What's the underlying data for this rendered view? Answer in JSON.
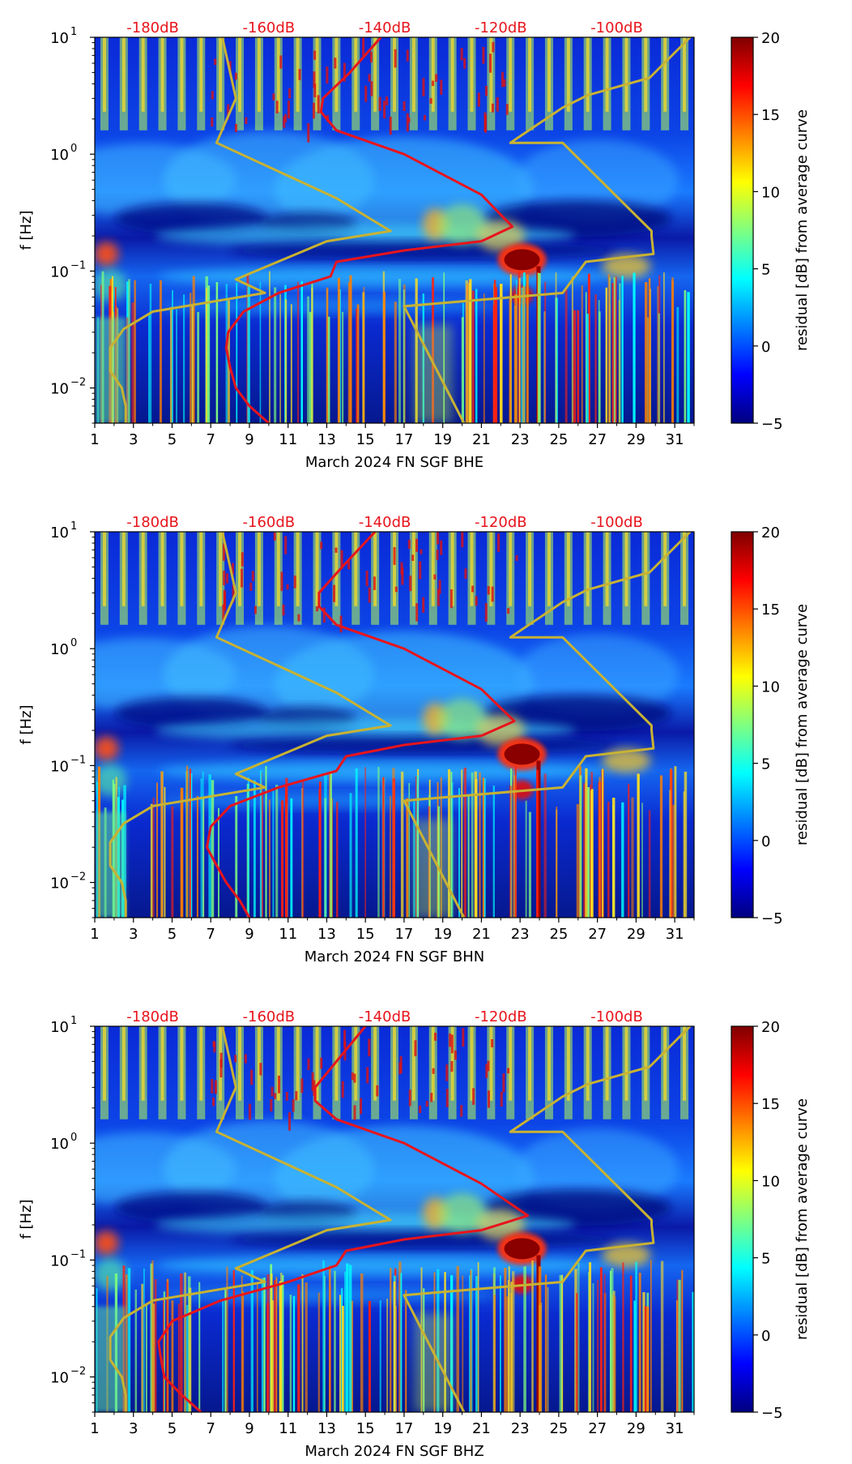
{
  "colors": {
    "noise_curve": "#e8141c",
    "model_curve": "#c8b233",
    "db_labels": "#e8141c",
    "jet": [
      "#00007f",
      "#0000ff",
      "#007fff",
      "#00ffff",
      "#7fff7f",
      "#ffff00",
      "#ff7f00",
      "#ff0000",
      "#7f0000"
    ]
  },
  "chart_data": [
    {
      "type": "heatmap",
      "xlabel": "March 2024 FN SGF  BHE",
      "ylabel": "f [Hz]",
      "x_ticks": [
        "1",
        "3",
        "5",
        "7",
        "9",
        "11",
        "13",
        "15",
        "17",
        "19",
        "21",
        "23",
        "25",
        "27",
        "29",
        "31"
      ],
      "y_ticks": [
        {
          "label": "10",
          "exp": "1",
          "value": 10
        },
        {
          "label": "10",
          "exp": "0",
          "value": 1
        },
        {
          "label": "10",
          "exp": "−1",
          "value": 0.1
        },
        {
          "label": "10",
          "exp": "−2",
          "value": 0.01
        }
      ],
      "top_labels": [
        "-180dB",
        "-160dB",
        "-140dB",
        "-120dB",
        "-100dB"
      ],
      "xlim": [
        1,
        32
      ],
      "ylim": [
        0.005,
        10
      ],
      "y_scale": "log",
      "colorbar": {
        "label": "residual [dB] from average curve",
        "ticks": [
          "−5",
          "0",
          "5",
          "10",
          "15",
          "20"
        ],
        "range": [
          -5,
          20
        ]
      },
      "model_curve_x": [
        7.6,
        8.3,
        7.3,
        13.5,
        16.3,
        13.0,
        8.3,
        9.8,
        4.0,
        2.5,
        1.8,
        1.8,
        2.4,
        2.6,
        2.6
      ],
      "model_curve_y": [
        10,
        3.0,
        1.25,
        0.42,
        0.22,
        0.18,
        0.085,
        0.065,
        0.045,
        0.032,
        0.022,
        0.014,
        0.01,
        0.007,
        0.005
      ],
      "model_curve_x2": [
        20.1,
        17.0,
        25.2,
        26.4,
        29.9,
        29.8,
        29.8,
        25.2,
        22.5,
        25.2,
        26.5,
        29.7,
        31.8
      ],
      "model_curve_y2": [
        0.005,
        0.05,
        0.065,
        0.12,
        0.14,
        0.2,
        0.22,
        1.25,
        1.25,
        2.5,
        3.2,
        4.5,
        10
      ],
      "noise_curve_x": [
        15.8,
        14.2,
        12.8,
        12.7,
        13.5,
        17.0,
        21.0,
        22.6,
        21.0,
        17.0,
        13.5,
        13.2,
        10.5,
        8.7,
        7.9,
        7.8,
        8.0,
        8.3,
        9.0,
        10.0
      ],
      "noise_curve_y": [
        10,
        5.0,
        3.0,
        2.3,
        1.6,
        1.0,
        0.45,
        0.24,
        0.18,
        0.15,
        0.12,
        0.09,
        0.065,
        0.045,
        0.03,
        0.022,
        0.015,
        0.01,
        0.007,
        0.005
      ]
    },
    {
      "type": "heatmap",
      "xlabel": "March 2024 FN SGF  BHN",
      "ylabel": "f [Hz]",
      "x_ticks": [
        "1",
        "3",
        "5",
        "7",
        "9",
        "11",
        "13",
        "15",
        "17",
        "19",
        "21",
        "23",
        "25",
        "27",
        "29",
        "31"
      ],
      "y_ticks": [
        {
          "label": "10",
          "exp": "1",
          "value": 10
        },
        {
          "label": "10",
          "exp": "0",
          "value": 1
        },
        {
          "label": "10",
          "exp": "−1",
          "value": 0.1
        },
        {
          "label": "10",
          "exp": "−2",
          "value": 0.01
        }
      ],
      "top_labels": [
        "-180dB",
        "-160dB",
        "-140dB",
        "-120dB",
        "-100dB"
      ],
      "xlim": [
        1,
        32
      ],
      "ylim": [
        0.005,
        10
      ],
      "y_scale": "log",
      "colorbar": {
        "label": "residual [dB] from average curve",
        "ticks": [
          "−5",
          "0",
          "5",
          "10",
          "15",
          "20"
        ],
        "range": [
          -5,
          20
        ]
      },
      "model_curve_x": [
        7.6,
        8.3,
        7.3,
        13.5,
        16.3,
        13.0,
        8.3,
        9.8,
        4.0,
        2.5,
        1.8,
        1.8,
        2.4,
        2.6,
        2.6
      ],
      "model_curve_y": [
        10,
        3.0,
        1.25,
        0.42,
        0.22,
        0.18,
        0.085,
        0.065,
        0.045,
        0.032,
        0.022,
        0.014,
        0.01,
        0.007,
        0.005
      ],
      "model_curve_x2": [
        20.1,
        17.0,
        25.2,
        26.4,
        29.9,
        29.8,
        29.8,
        25.2,
        22.5,
        25.2,
        26.5,
        29.7,
        31.8
      ],
      "model_curve_y2": [
        0.005,
        0.05,
        0.065,
        0.12,
        0.14,
        0.2,
        0.22,
        1.25,
        1.25,
        2.5,
        3.2,
        4.5,
        10
      ],
      "noise_curve_x": [
        15.5,
        13.8,
        12.6,
        12.6,
        13.5,
        17.0,
        21.0,
        22.7,
        21.0,
        17.0,
        14.0,
        13.5,
        10.5,
        8.0,
        7.0,
        6.8,
        7.2,
        7.8,
        8.5,
        9.0
      ],
      "noise_curve_y": [
        10,
        5.0,
        3.0,
        2.3,
        1.6,
        1.0,
        0.45,
        0.24,
        0.18,
        0.15,
        0.12,
        0.09,
        0.065,
        0.045,
        0.03,
        0.02,
        0.015,
        0.01,
        0.007,
        0.005
      ]
    },
    {
      "type": "heatmap",
      "xlabel": "March 2024 FN SGF  BHZ",
      "ylabel": "f [Hz]",
      "x_ticks": [
        "1",
        "3",
        "5",
        "7",
        "9",
        "11",
        "13",
        "15",
        "17",
        "19",
        "21",
        "23",
        "25",
        "27",
        "29",
        "31"
      ],
      "y_ticks": [
        {
          "label": "10",
          "exp": "1",
          "value": 10
        },
        {
          "label": "10",
          "exp": "0",
          "value": 1
        },
        {
          "label": "10",
          "exp": "−1",
          "value": 0.1
        },
        {
          "label": "10",
          "exp": "−2",
          "value": 0.01
        }
      ],
      "top_labels": [
        "-180dB",
        "-160dB",
        "-140dB",
        "-120dB",
        "-100dB"
      ],
      "xlim": [
        1,
        32
      ],
      "ylim": [
        0.005,
        10
      ],
      "y_scale": "log",
      "colorbar": {
        "label": "residual [dB] from average curve",
        "ticks": [
          "−5",
          "0",
          "5",
          "10",
          "15",
          "20"
        ],
        "range": [
          -5,
          20
        ]
      },
      "model_curve_x": [
        7.6,
        8.3,
        7.3,
        13.5,
        16.3,
        13.0,
        8.3,
        9.8,
        4.0,
        2.5,
        1.8,
        1.8,
        2.4,
        2.6,
        2.6
      ],
      "model_curve_y": [
        10,
        3.0,
        1.25,
        0.42,
        0.22,
        0.18,
        0.085,
        0.065,
        0.045,
        0.032,
        0.022,
        0.014,
        0.01,
        0.007,
        0.005
      ],
      "model_curve_x2": [
        20.1,
        17.0,
        25.2,
        26.4,
        29.9,
        29.8,
        29.8,
        25.2,
        22.5,
        25.2,
        26.5,
        29.7,
        31.8
      ],
      "model_curve_y2": [
        0.005,
        0.05,
        0.065,
        0.12,
        0.14,
        0.2,
        0.22,
        1.25,
        1.25,
        2.5,
        3.2,
        4.5,
        10
      ],
      "noise_curve_x": [
        15.0,
        13.5,
        12.4,
        12.4,
        13.5,
        17.0,
        21.0,
        23.4,
        21.0,
        17.0,
        14.0,
        13.5,
        11.0,
        7.5,
        5.0,
        4.3,
        4.4,
        4.6,
        5.5,
        6.5
      ],
      "noise_curve_y": [
        10,
        5.0,
        3.0,
        2.3,
        1.6,
        1.0,
        0.45,
        0.24,
        0.18,
        0.15,
        0.12,
        0.09,
        0.065,
        0.045,
        0.03,
        0.02,
        0.015,
        0.01,
        0.007,
        0.005
      ]
    }
  ]
}
